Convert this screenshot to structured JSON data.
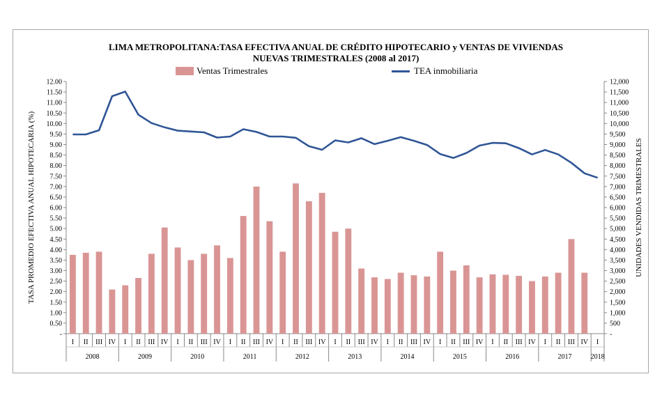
{
  "chart_data": {
    "type": "bar",
    "title": "LIMA METROPOLITANA:TASA  EFECTIVA  ANUAL  DE  CRÉDITO  HIPOTECARIO  y VENTAS  DE  VIVIENDAS",
    "subtitle": "NUEVAS   TRIMESTRALES  (2008 al 2017)",
    "ylabel_left": "TASA  PROMEDIO  EFECTIVA  ANUAL  HIPOTECARIA  (%)",
    "ylabel_right": "UNIDADES VENDIDAS TRIMESTRALES",
    "ylim_left": [
      0,
      12
    ],
    "ylim_right": [
      0,
      12000
    ],
    "left_ticks": [
      "-",
      "0.50",
      "1.00",
      "1.50",
      "2.00",
      "2.50",
      "3.00",
      "3.50",
      "4.00",
      "4.50",
      "5.00",
      "5.50",
      "6.00",
      "6.50",
      "7.00",
      "7.50",
      "8.00",
      "8.50",
      "9.00",
      "9.50",
      "10.00",
      "10.50",
      "11.00",
      "11.50",
      "12.00"
    ],
    "right_ticks": [
      "-",
      "500",
      "1,000",
      "1,500",
      "2,000",
      "2,500",
      "3,000",
      "3,500",
      "4,000",
      "4,500",
      "5,000",
      "5,500",
      "6,000",
      "6,500",
      "7,000",
      "7,500",
      "8,000",
      "8,500",
      "9,000",
      "9,500",
      "10,000",
      "10,500",
      "11,000",
      "11,500",
      "12,000"
    ],
    "quarters": [
      "I",
      "II",
      "III",
      "IV",
      "I",
      "II",
      "III",
      "IV",
      "I",
      "II",
      "III",
      "IV",
      "I",
      "II",
      "III",
      "IV",
      "I",
      "II",
      "III",
      "IV",
      "I",
      "II",
      "III",
      "IV",
      "I",
      "II",
      "III",
      "IV",
      "I",
      "II",
      "III",
      "IV",
      "I",
      "II",
      "III",
      "IV",
      "I",
      "II",
      "III",
      "IV",
      "I"
    ],
    "years": [
      "2008",
      "2009",
      "2010",
      "2011",
      "2012",
      "2013",
      "2014",
      "2015",
      "2016",
      "2017",
      "2018"
    ],
    "series": [
      {
        "name": "Ventas Trimestrales",
        "kind": "bar",
        "axis": "right",
        "color": "#d99594",
        "values": [
          3750,
          3850,
          3900,
          2100,
          2300,
          2650,
          3800,
          5050,
          4100,
          3500,
          3800,
          4200,
          3600,
          5600,
          7000,
          5350,
          3900,
          7150,
          6300,
          6700,
          4850,
          5000,
          3100,
          2680,
          2600,
          2900,
          2780,
          2720,
          3900,
          3000,
          3250,
          2680,
          2820,
          2800,
          2750,
          2500,
          2720,
          2900,
          4500,
          2900,
          null
        ]
      },
      {
        "name": "TEA inmobiliaria",
        "kind": "line",
        "axis": "left",
        "color": "#2f5596",
        "values": [
          9.48,
          9.48,
          9.68,
          11.3,
          11.52,
          10.42,
          10.02,
          9.82,
          9.66,
          9.62,
          9.58,
          9.33,
          9.38,
          9.73,
          9.6,
          9.38,
          9.38,
          9.32,
          8.92,
          8.75,
          9.2,
          9.1,
          9.3,
          9.02,
          9.18,
          9.35,
          9.18,
          8.98,
          8.55,
          8.36,
          8.6,
          8.95,
          9.08,
          9.06,
          8.83,
          8.53,
          8.74,
          8.53,
          8.13,
          7.63,
          7.42
        ]
      }
    ]
  }
}
